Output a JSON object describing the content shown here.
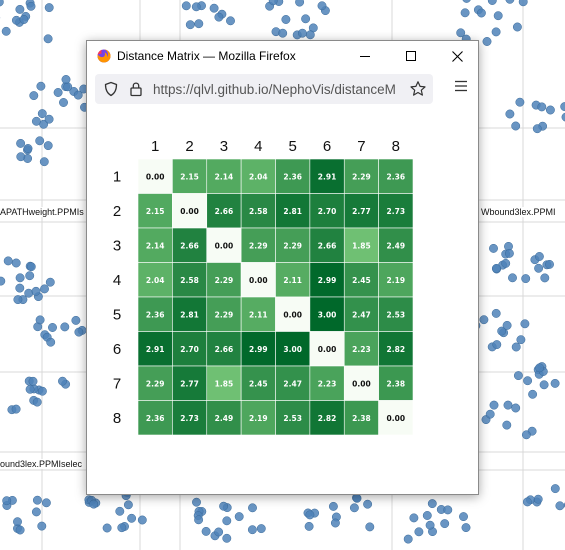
{
  "background": {
    "labels": [
      "APATHweight.PPMIs",
      "Wbound3lex.PPMI",
      "ound3lex.PPMIselec"
    ]
  },
  "window": {
    "title": "Distance Matrix — Mozilla Firefox",
    "url": "https://qlvl.github.io/NephoVis/distanceM",
    "icons": {
      "app": "firefox-logo-icon",
      "minimize": "minimize-icon",
      "maximize": "maximize-icon",
      "close": "close-icon",
      "tracking": "shield-icon",
      "security": "lock-icon",
      "bookmark": "star-icon",
      "menu": "hamburger-menu-icon"
    }
  },
  "chart_data": {
    "type": "heatmap",
    "row_labels": [
      "1",
      "2",
      "3",
      "4",
      "5",
      "6",
      "7",
      "8"
    ],
    "column_labels": [
      "1",
      "2",
      "3",
      "4",
      "5",
      "6",
      "7",
      "8"
    ],
    "values": [
      [
        "0.00",
        "2.15",
        "2.14",
        "2.04",
        "2.36",
        "2.91",
        "2.29",
        "2.36"
      ],
      [
        "2.15",
        "0.00",
        "2.66",
        "2.58",
        "2.81",
        "2.70",
        "2.77",
        "2.73"
      ],
      [
        "2.14",
        "2.66",
        "0.00",
        "2.29",
        "2.29",
        "2.66",
        "1.85",
        "2.49"
      ],
      [
        "2.04",
        "2.58",
        "2.29",
        "0.00",
        "2.11",
        "2.99",
        "2.45",
        "2.19"
      ],
      [
        "2.36",
        "2.81",
        "2.29",
        "2.11",
        "0.00",
        "3.00",
        "2.47",
        "2.53"
      ],
      [
        "2.91",
        "2.70",
        "2.66",
        "2.99",
        "3.00",
        "0.00",
        "2.23",
        "2.82"
      ],
      [
        "2.29",
        "2.77",
        "1.85",
        "2.45",
        "2.47",
        "2.23",
        "0.00",
        "2.38"
      ],
      [
        "2.36",
        "2.73",
        "2.49",
        "2.19",
        "2.53",
        "2.82",
        "2.38",
        "0.00"
      ]
    ],
    "color_scale": {
      "low": "#f7fcf5",
      "mid": "#74c476",
      "high": "#00682a",
      "domain": [
        0,
        3
      ]
    }
  }
}
